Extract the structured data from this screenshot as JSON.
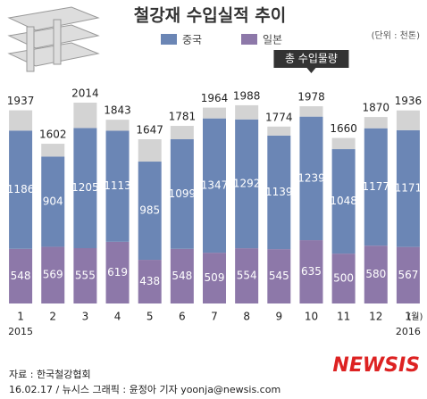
{
  "chart_data": {
    "type": "stacked_bar",
    "title": "철강재 수입실적 추이",
    "unit": "(단위 : 천톤)",
    "categories": [
      "1",
      "2",
      "3",
      "4",
      "5",
      "6",
      "7",
      "8",
      "9",
      "10",
      "11",
      "12",
      "1"
    ],
    "years": [
      "2015",
      null,
      null,
      null,
      null,
      null,
      null,
      null,
      null,
      null,
      null,
      null,
      "2016"
    ],
    "x_unit": "(월)",
    "series": [
      {
        "name": "중국",
        "color": "#6b86b5",
        "values": [
          1186,
          904,
          1205,
          1113,
          985,
          1099,
          1347,
          1292,
          1139,
          1239,
          1048,
          1177,
          1171
        ]
      },
      {
        "name": "일본",
        "color": "#8d78a9",
        "values": [
          548,
          569,
          555,
          619,
          438,
          548,
          509,
          554,
          545,
          635,
          500,
          580,
          567
        ]
      }
    ],
    "total": {
      "name": "총 수입물량",
      "color": "#d3d3d3",
      "values": [
        1937,
        1602,
        2014,
        1843,
        1647,
        1781,
        1964,
        1988,
        1774,
        1978,
        1660,
        1870,
        1936
      ]
    },
    "source": "자료 : 한국철강협회",
    "credit": "16.02.17 / 뉴시스 그래픽 : 윤정아 기자 yoonja@newsis.com",
    "logo": "NEWSIS"
  }
}
